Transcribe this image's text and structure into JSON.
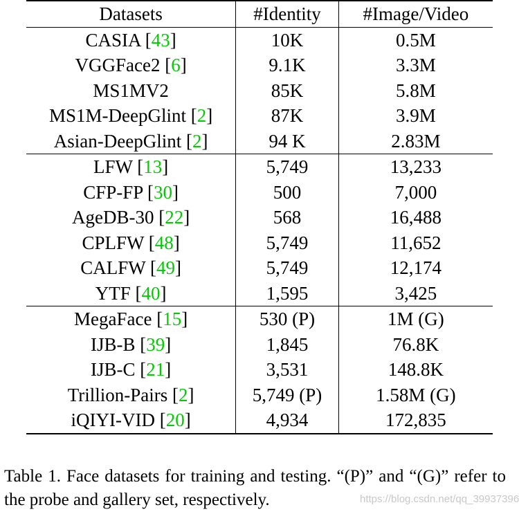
{
  "table": {
    "headers": [
      "Datasets",
      "#Identity",
      "#Image/Video"
    ],
    "groups": [
      [
        {
          "name": "CASIA",
          "cite": "43",
          "identity": "10K",
          "images": "0.5M"
        },
        {
          "name": "VGGFace2",
          "cite": "6",
          "identity": "9.1K",
          "images": "3.3M"
        },
        {
          "name": "MS1MV2",
          "cite": "",
          "identity": "85K",
          "images": "5.8M"
        },
        {
          "name": "MS1M-DeepGlint",
          "cite": "2",
          "identity": "87K",
          "images": "3.9M"
        },
        {
          "name": "Asian-DeepGlint",
          "cite": "2",
          "identity": "94 K",
          "images": "2.83M"
        }
      ],
      [
        {
          "name": "LFW",
          "cite": "13",
          "identity": "5,749",
          "images": "13,233"
        },
        {
          "name": "CFP-FP",
          "cite": "30",
          "identity": "500",
          "images": "7,000"
        },
        {
          "name": "AgeDB-30",
          "cite": "22",
          "identity": "568",
          "images": "16,488"
        },
        {
          "name": "CPLFW",
          "cite": "48",
          "identity": "5,749",
          "images": "11,652"
        },
        {
          "name": "CALFW",
          "cite": "49",
          "identity": "5,749",
          "images": "12,174"
        },
        {
          "name": "YTF",
          "cite": "40",
          "identity": "1,595",
          "images": "3,425"
        }
      ],
      [
        {
          "name": "MegaFace",
          "cite": "15",
          "identity": "530 (P)",
          "images": "1M (G)"
        },
        {
          "name": "IJB-B",
          "cite": "39",
          "identity": "1,845",
          "images": "76.8K"
        },
        {
          "name": "IJB-C",
          "cite": "21",
          "identity": "3,531",
          "images": "148.8K"
        },
        {
          "name": "Trillion-Pairs",
          "cite": "2",
          "identity": "5,749 (P)",
          "images": "1.58M (G)"
        },
        {
          "name": "iQIYI-VID",
          "cite": "20",
          "identity": "4,934",
          "images": "172,835"
        }
      ]
    ]
  },
  "caption": "Table 1. Face datasets for training and testing. “(P)” and “(G)” refer to the probe and gallery set, respectively.",
  "watermark": "https://blog.csdn.net/qq_39937396",
  "colors": {
    "citation": "#00cc00",
    "text": "#000000",
    "watermark": "#c8c8c8"
  }
}
